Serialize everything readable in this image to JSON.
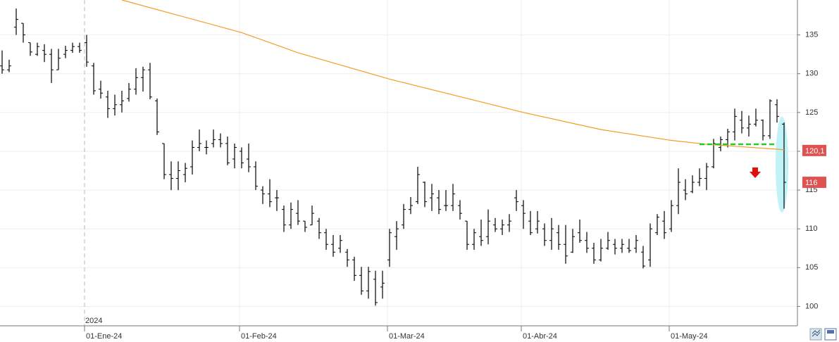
{
  "chart_data": {
    "type": "ohlc",
    "color": "#000000",
    "categories": [
      null,
      null,
      null,
      null,
      null,
      null,
      null,
      null,
      null,
      null,
      null,
      null,
      "01-Ene-24",
      null,
      null,
      null,
      null,
      null,
      null,
      null,
      null,
      null,
      null,
      null,
      null,
      null,
      null,
      null,
      null,
      null,
      null,
      null,
      null,
      null,
      "01-Feb-24",
      null,
      null,
      null,
      null,
      null,
      null,
      null,
      null,
      null,
      null,
      null,
      null,
      null,
      null,
      null,
      null,
      null,
      null,
      null,
      null,
      "01-Mar-24",
      null,
      null,
      null,
      null,
      null,
      null,
      null,
      null,
      null,
      null,
      null,
      null,
      null,
      null,
      null,
      null,
      null,
      null,
      "01-Abr-24",
      null,
      null,
      null,
      null,
      null,
      null,
      null,
      null,
      null,
      null,
      null,
      null,
      null,
      null,
      null,
      null,
      null,
      null,
      null,
      null,
      "01-May-24",
      null,
      null,
      null,
      null,
      null,
      null,
      null,
      null,
      null,
      null,
      null,
      null,
      null,
      null,
      null,
      null
    ],
    "open": [
      131,
      130.5,
      136,
      136.5,
      134,
      132.5,
      133,
      132.5,
      130.5,
      132.5,
      133,
      133.5,
      134,
      131,
      128,
      127,
      125.5,
      126,
      126.8,
      128,
      129.5,
      130.5,
      126.5,
      121,
      117,
      116.5,
      117,
      118,
      120.5,
      120.5,
      121,
      121.5,
      121,
      119,
      120,
      119,
      118,
      115,
      114.5,
      114,
      112.5,
      110.5,
      112,
      111,
      110.5,
      111,
      109.5,
      108,
      107.5,
      107,
      106,
      104,
      102,
      103.5,
      102.5,
      106,
      109,
      110.5,
      112.5,
      113.5,
      116,
      114,
      114,
      113,
      113,
      113,
      111,
      108,
      109,
      109,
      110.5,
      110,
      110.5,
      114,
      113,
      111,
      110,
      110,
      108.5,
      109.5,
      108,
      107,
      109.5,
      108.5,
      107.5,
      106,
      107.5,
      108,
      107.5,
      107.5,
      107.5,
      107,
      106,
      109.5,
      111,
      110,
      113,
      115,
      114.8,
      116,
      116.5,
      118,
      120.5,
      121.5,
      122.5,
      124,
      123,
      123.5,
      124,
      122,
      126,
      123.5
    ],
    "high": [
      133,
      131.8,
      138.4,
      136.5,
      134,
      134,
      133.8,
      133.2,
      133.2,
      133.6,
      134,
      134,
      135,
      131.4,
      129.1,
      127.8,
      127.3,
      127.8,
      128.8,
      130.7,
      130.9,
      131.4,
      126.8,
      121,
      118.7,
      118.7,
      118.5,
      121.4,
      122.8,
      121.4,
      122.8,
      122.3,
      121.9,
      121,
      120.5,
      121,
      118.7,
      115.5,
      116.4,
      115,
      113,
      113.4,
      113.7,
      111,
      113,
      111.4,
      110,
      109.2,
      109.2,
      107.4,
      106.4,
      105.1,
      105.1,
      104.6,
      104.6,
      110,
      111,
      113.2,
      114.1,
      118,
      116.1,
      115.8,
      115,
      115,
      115.8,
      113.7,
      111,
      110,
      111.2,
      112.5,
      111.4,
      111.2,
      111.9,
      115,
      113.7,
      112.3,
      112.3,
      110.7,
      111.4,
      110.5,
      110.5,
      110,
      111.2,
      109.6,
      108.2,
      108.7,
      109.6,
      108.7,
      108.7,
      108.7,
      109.2,
      107.8,
      110.7,
      111.9,
      112.3,
      113.7,
      117.8,
      116.4,
      116.9,
      117.8,
      118.5,
      121.6,
      121.9,
      122.9,
      125.5,
      125.2,
      124.6,
      125.5,
      124.1,
      126.7,
      126.7,
      123.7
    ],
    "low": [
      130,
      130.2,
      135,
      134,
      132.3,
      132.3,
      131.5,
      128.8,
      130.5,
      132,
      132.7,
      132.7,
      130.9,
      127.3,
      126.8,
      124.3,
      124.6,
      125,
      126.4,
      127.3,
      127.7,
      126.7,
      122.1,
      116.4,
      115,
      115,
      116,
      117,
      120,
      119.6,
      120.5,
      120.5,
      118.2,
      117.8,
      117.8,
      117.3,
      115,
      113.2,
      112.8,
      112.3,
      109.6,
      110,
      110.5,
      109.6,
      110.5,
      108.7,
      107.3,
      106.4,
      106.9,
      105.1,
      103.3,
      101.5,
      101,
      100.1,
      101,
      105.1,
      107.3,
      110,
      111.9,
      113.2,
      112.8,
      112.3,
      111.9,
      112.3,
      112.3,
      111.2,
      107.3,
      107.3,
      107.8,
      108,
      109.6,
      109.2,
      109.6,
      112.3,
      110,
      109.2,
      109.4,
      107.8,
      107.3,
      107.3,
      105.5,
      106.9,
      108.2,
      106.9,
      105.5,
      105.8,
      107.3,
      106.7,
      106.9,
      106.9,
      106.9,
      104.9,
      105.1,
      109.2,
      108.7,
      109.6,
      111.9,
      113.7,
      114.6,
      115.5,
      115,
      117.8,
      120,
      120.5,
      121.4,
      122.3,
      121.9,
      123.2,
      121.4,
      121.6,
      123.7,
      112.6
    ],
    "close": [
      130.5,
      131,
      137,
      135,
      132.8,
      133.5,
      132.5,
      130.5,
      132,
      133,
      133.5,
      133,
      131.5,
      127.8,
      127.5,
      125.5,
      126,
      126.5,
      128,
      129.5,
      130.5,
      127,
      122.5,
      117,
      116.5,
      117.5,
      117.8,
      120.5,
      121,
      120.5,
      121.5,
      121,
      118.5,
      120.5,
      118.5,
      118,
      115.5,
      114.5,
      113.5,
      114,
      110.5,
      112.5,
      111,
      110.2,
      112,
      109.5,
      108,
      107,
      108.5,
      106,
      104,
      102,
      104.5,
      100.5,
      103,
      109.5,
      110,
      112.5,
      113,
      117,
      113.5,
      114.5,
      112.5,
      113,
      114.5,
      112,
      108,
      109.5,
      108.5,
      111,
      110,
      110.5,
      111,
      113.5,
      112,
      109.5,
      111,
      108.5,
      110,
      108,
      106.5,
      109,
      108.5,
      107.5,
      106,
      107.5,
      108.5,
      107.5,
      108,
      107.2,
      108.5,
      105.2,
      110,
      111.5,
      109.5,
      113,
      116,
      114.5,
      116,
      116.5,
      118,
      121,
      121.5,
      122.5,
      124.5,
      123,
      123.5,
      124,
      122,
      126.5,
      124.5,
      116
    ],
    "series": [
      {
        "type": "line",
        "color": "#f39c2a",
        "x": [
          17,
          34,
          42,
          55,
          74,
          85,
          95,
          100,
          111
        ],
        "values": [
          139.5,
          135.3,
          132.7,
          129.3,
          125,
          122.8,
          121.4,
          120.9,
          120.2
        ]
      }
    ],
    "reference_line": {
      "value": 120.9,
      "x": [
        99,
        110
      ],
      "color": "#22cc22"
    },
    "price_tags": [
      {
        "value": 120.1,
        "label": "120,1"
      },
      {
        "value": 116,
        "label": "116"
      }
    ],
    "tag_color": "#e05252",
    "year_label": "2024",
    "ylim": [
      97.5,
      139.5
    ],
    "yticks": [
      100,
      105,
      110,
      115,
      120,
      125,
      130,
      135
    ],
    "grid": true
  }
}
